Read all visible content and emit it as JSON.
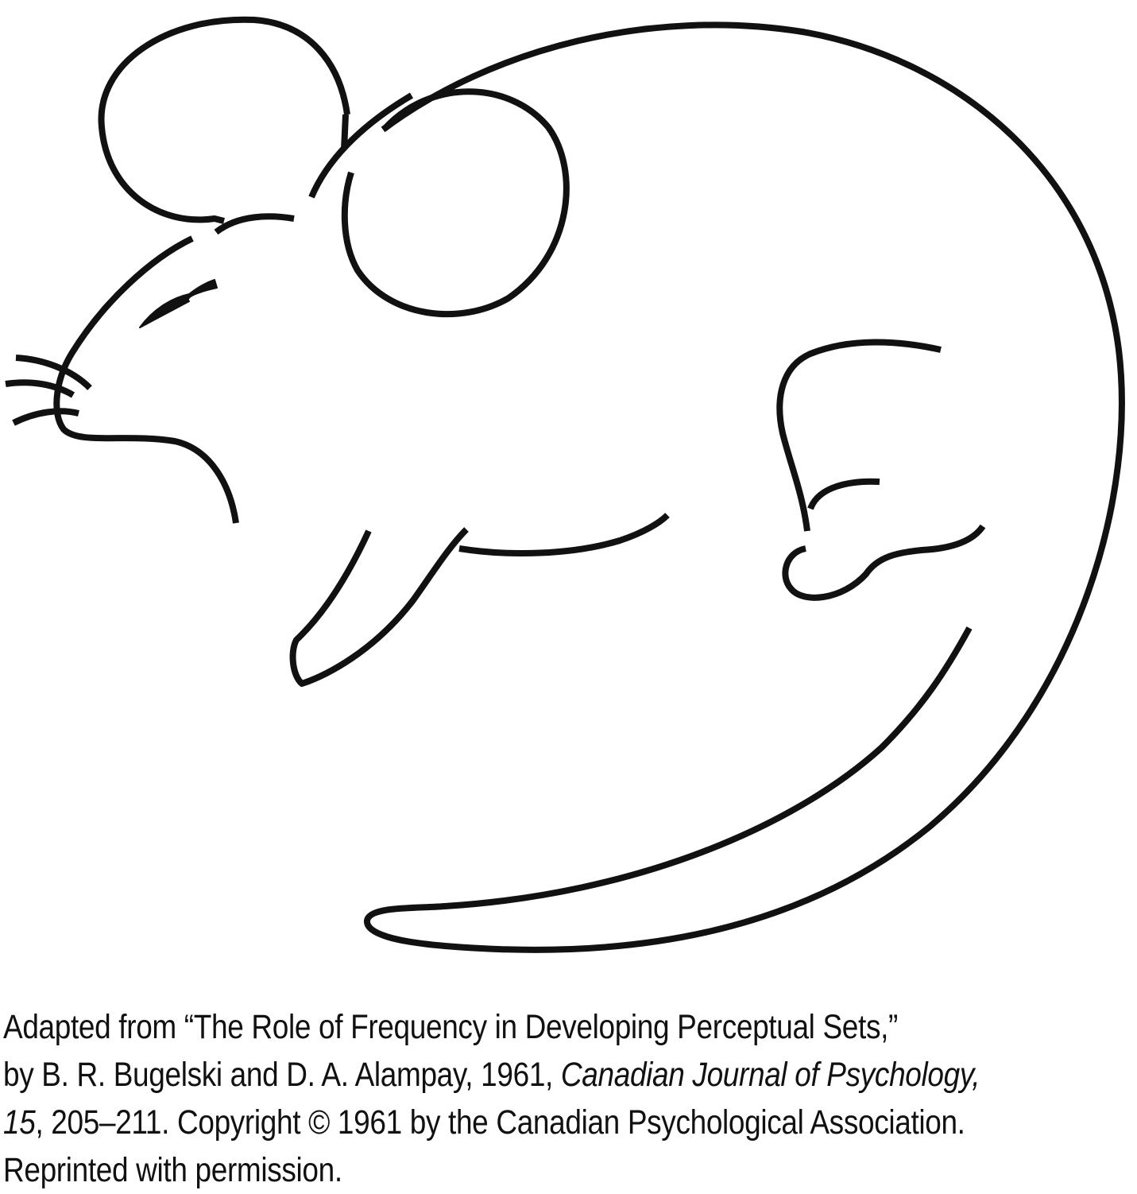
{
  "figure": {
    "subject": "rat-man-ambiguous-figure-rat-view",
    "stroke_color": "#111111",
    "background_color": "#ffffff"
  },
  "caption": {
    "line1": "Adapted from “The Role of Frequency in Developing Perceptual Sets,”",
    "line2_prefix": "by B. R. Bugelski and D. A. Alampay, 1961, ",
    "line2_journal": "Canadian Journal of Psychology,",
    "line3_volume": "15",
    "line3_rest": ", 205–211. Copyright © 1961 by the Canadian Psychological Association.",
    "line4": "Reprinted with permission."
  }
}
